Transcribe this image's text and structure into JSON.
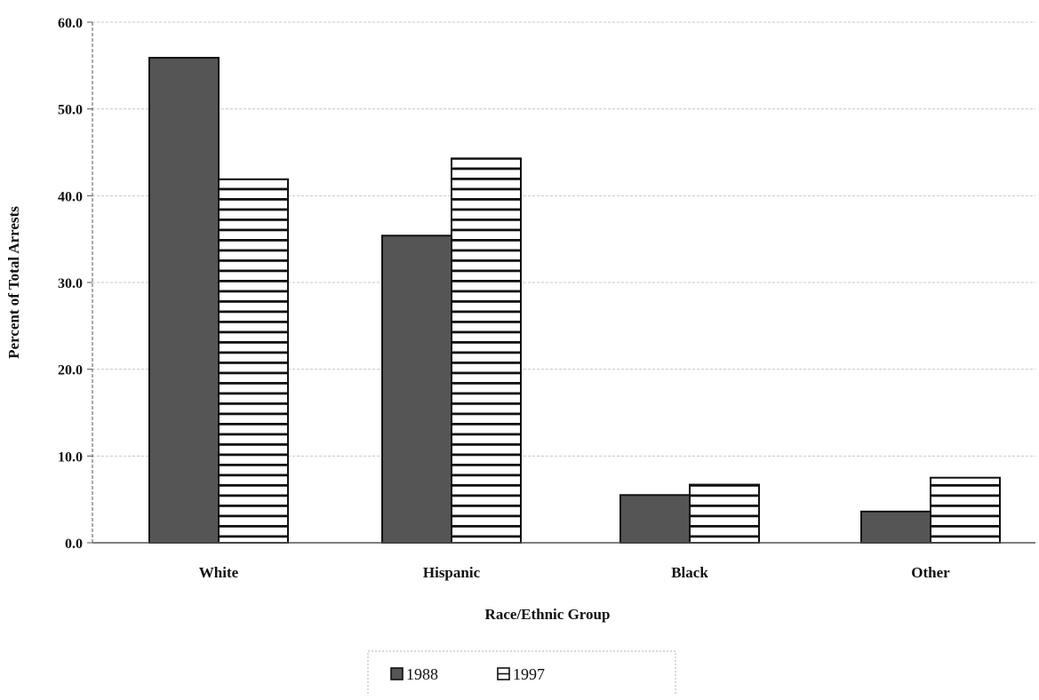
{
  "chart_data": {
    "type": "bar",
    "xlabel": "Race/Ethnic Group",
    "ylabel": "Percent of Total Arrests",
    "categories": [
      "White",
      "Hispanic",
      "Black",
      "Other"
    ],
    "series": [
      {
        "name": "1988",
        "values": [
          55.9,
          35.4,
          5.5,
          3.6
        ],
        "color": "#555555",
        "pattern": "solid"
      },
      {
        "name": "1997",
        "values": [
          41.9,
          44.3,
          6.7,
          7.5
        ],
        "color": "#ffffff",
        "pattern": "horizontal-lines"
      }
    ],
    "ylim": [
      0,
      60
    ],
    "yticks": [
      "0.0",
      "10.0",
      "20.0",
      "30.0",
      "40.0",
      "50.0",
      "60.0"
    ],
    "grid": true,
    "legend_position": "bottom-center"
  }
}
